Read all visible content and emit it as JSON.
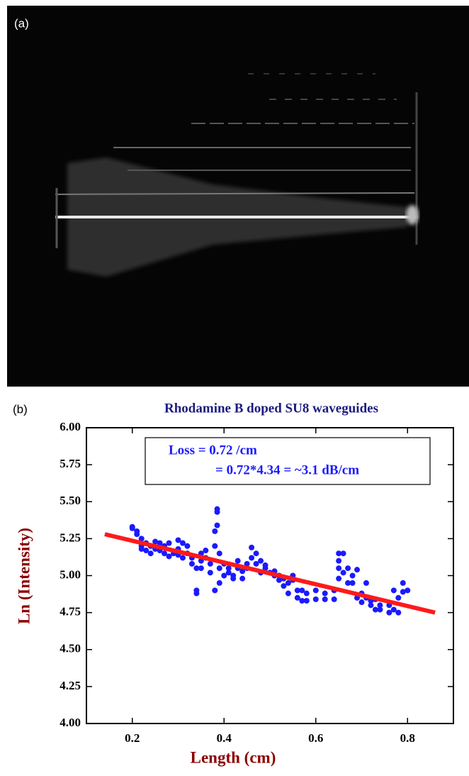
{
  "panel_a": {
    "label": "(a)"
  },
  "panel_b": {
    "label": "(b)"
  },
  "chart_data": {
    "type": "scatter",
    "title": "Rhodamine B doped SU8 waveguides",
    "x_label": "Length (cm)",
    "y_label": "Ln (Intensity)",
    "annotations": [
      "Loss = 0.72 /cm",
      "= 0.72*4.34 = ~3.1 dB/cm"
    ],
    "xlim": [
      0.1,
      0.9
    ],
    "ylim": [
      4,
      6
    ],
    "xticks": [
      0.2,
      0.4,
      0.6,
      0.8
    ],
    "yticks": [
      {
        "value": 4,
        "label": "4.00"
      },
      {
        "value": 4.25,
        "label": "4.25"
      },
      {
        "value": 4.5,
        "label": "4.50"
      },
      {
        "value": 4.75,
        "label": "4.75"
      },
      {
        "value": 5,
        "label": "5.00"
      },
      {
        "value": 5.25,
        "label": "5.25"
      },
      {
        "value": 5.5,
        "label": "5.50"
      },
      {
        "value": 5.75,
        "label": "5.75"
      },
      {
        "value": 6,
        "label": "6.00"
      }
    ],
    "points": {
      "color": "#1a1aff",
      "x": [
        0.2,
        0.2,
        0.21,
        0.21,
        0.22,
        0.22,
        0.22,
        0.23,
        0.23,
        0.24,
        0.24,
        0.25,
        0.25,
        0.26,
        0.26,
        0.27,
        0.27,
        0.28,
        0.28,
        0.29,
        0.3,
        0.3,
        0.3,
        0.31,
        0.31,
        0.32,
        0.32,
        0.33,
        0.33,
        0.34,
        0.34,
        0.34,
        0.35,
        0.35,
        0.35,
        0.36,
        0.36,
        0.37,
        0.37,
        0.38,
        0.38,
        0.38,
        0.385,
        0.385,
        0.385,
        0.39,
        0.39,
        0.39,
        0.4,
        0.4,
        0.41,
        0.41,
        0.42,
        0.42,
        0.43,
        0.43,
        0.44,
        0.44,
        0.45,
        0.45,
        0.46,
        0.46,
        0.47,
        0.47,
        0.48,
        0.48,
        0.49,
        0.49,
        0.5,
        0.51,
        0.51,
        0.52,
        0.52,
        0.53,
        0.53,
        0.54,
        0.54,
        0.55,
        0.55,
        0.56,
        0.56,
        0.57,
        0.57,
        0.58,
        0.58,
        0.6,
        0.6,
        0.62,
        0.62,
        0.64,
        0.64,
        0.65,
        0.65,
        0.65,
        0.65,
        0.66,
        0.66,
        0.67,
        0.67,
        0.68,
        0.68,
        0.69,
        0.69,
        0.7,
        0.7,
        0.71,
        0.71,
        0.72,
        0.72,
        0.73,
        0.73,
        0.74,
        0.74,
        0.76,
        0.76,
        0.77,
        0.77,
        0.78,
        0.78,
        0.79,
        0.79,
        0.8
      ],
      "y": [
        5.33,
        5.32,
        5.3,
        5.28,
        5.25,
        5.18,
        5.2,
        5.17,
        5.22,
        5.15,
        5.2,
        5.23,
        5.18,
        5.17,
        5.22,
        5.15,
        5.2,
        5.13,
        5.22,
        5.15,
        5.24,
        5.18,
        5.14,
        5.22,
        5.12,
        5.15,
        5.2,
        5.08,
        5.12,
        4.88,
        4.9,
        5.05,
        5.1,
        5.15,
        5.05,
        5.12,
        5.17,
        5.08,
        5.02,
        4.9,
        5.2,
        5.3,
        5.45,
        5.43,
        5.34,
        5.15,
        5.05,
        4.95,
        5.08,
        5.0,
        5.02,
        5.05,
        5.0,
        4.98,
        5.05,
        5.1,
        4.98,
        5.03,
        5.05,
        5.08,
        5.19,
        5.12,
        5.15,
        5.08,
        5.02,
        5.1,
        5.05,
        5.07,
        5.02,
        5.0,
        5.03,
        4.97,
        5.0,
        4.93,
        4.98,
        4.88,
        4.95,
        4.97,
        5.0,
        4.9,
        4.85,
        4.83,
        4.9,
        4.88,
        4.83,
        4.84,
        4.9,
        4.84,
        4.88,
        4.9,
        4.84,
        5.15,
        5.1,
        5.05,
        4.98,
        5.15,
        5.02,
        4.95,
        5.05,
        5.0,
        4.95,
        5.04,
        4.85,
        4.88,
        4.82,
        4.95,
        4.85,
        4.83,
        4.8,
        4.84,
        4.77,
        4.8,
        4.77,
        4.75,
        4.8,
        4.77,
        4.9,
        4.75,
        4.85,
        4.89,
        4.95,
        4.9
      ]
    },
    "fit": {
      "color": "#ff1a1a",
      "x": [
        0.14,
        0.86
      ],
      "y": [
        5.28,
        4.75
      ]
    }
  }
}
